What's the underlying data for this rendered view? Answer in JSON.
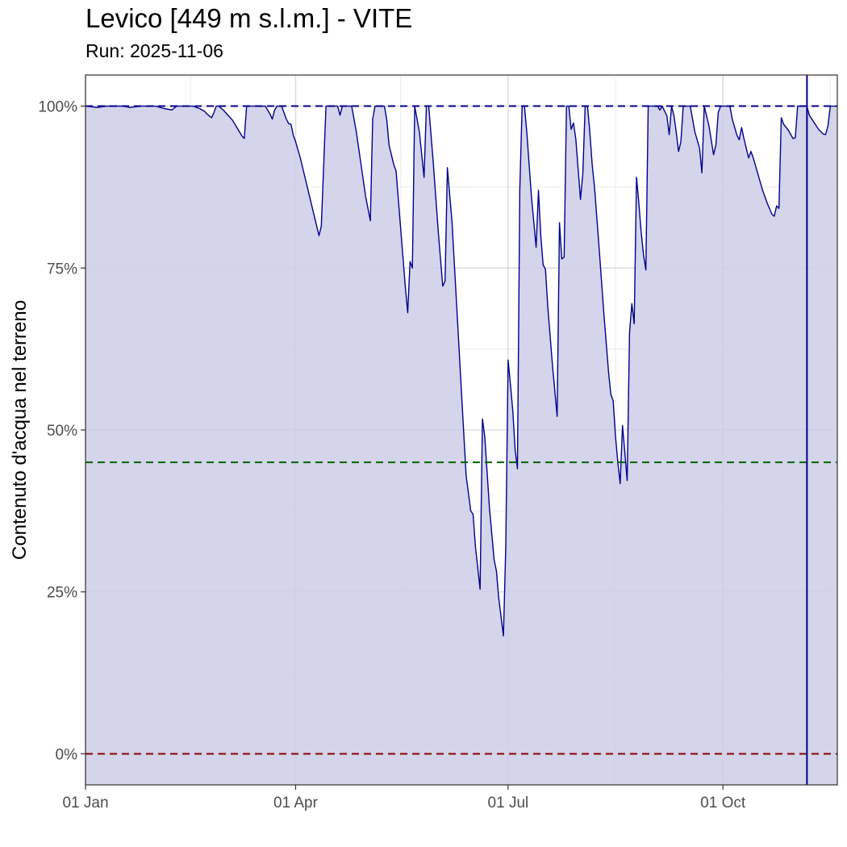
{
  "chart_data": {
    "type": "area",
    "title": "Levico [449 m s.l.m.] - VITE",
    "subtitle": "Run: 2025-11-06",
    "xlabel": "",
    "ylabel": "Contenuto d'acqua nel terreno",
    "x_ticks": [
      {
        "label": "01 Jan",
        "day": 1
      },
      {
        "label": "01 Apr",
        "day": 91
      },
      {
        "label": "01 Jul",
        "day": 182
      },
      {
        "label": "01 Oct",
        "day": 274
      }
    ],
    "x_minor_days": [
      46,
      136,
      228,
      320
    ],
    "xlim_days": [
      1,
      323
    ],
    "y_ticks": [
      {
        "label": "0%",
        "value": 0
      },
      {
        "label": "25%",
        "value": 25
      },
      {
        "label": "50%",
        "value": 50
      },
      {
        "label": "75%",
        "value": 75
      },
      {
        "label": "100%",
        "value": 100
      }
    ],
    "ylim": [
      -4.8,
      104.8
    ],
    "grid": true,
    "reference_lines": [
      {
        "value": 100,
        "color": "#00008b",
        "style": "dashed"
      },
      {
        "value": 45,
        "color": "#006400",
        "style": "dashed"
      },
      {
        "value": 0,
        "color": "#8b0000",
        "style": "dashed"
      }
    ],
    "run_date_day": 310,
    "colors": {
      "line": "#00008b",
      "fill": "#cccce8",
      "run_line": "#00008b"
    },
    "series": [
      {
        "points": [
          [
            1,
            100
          ],
          [
            6,
            99.8
          ],
          [
            10,
            100
          ],
          [
            17,
            100
          ],
          [
            20,
            99.8
          ],
          [
            25,
            100
          ],
          [
            31,
            100
          ],
          [
            35,
            99.6
          ],
          [
            38,
            99.4
          ],
          [
            40,
            100
          ],
          [
            47,
            100
          ],
          [
            50,
            99.6
          ],
          [
            52,
            99.2
          ],
          [
            53,
            98.8
          ],
          [
            55,
            98.2
          ],
          [
            56,
            99
          ],
          [
            57,
            100
          ],
          [
            58,
            100
          ],
          [
            60,
            99.4
          ],
          [
            62,
            98.6
          ],
          [
            64,
            97.8
          ],
          [
            66,
            96.6
          ],
          [
            68,
            95.4
          ],
          [
            69,
            95
          ],
          [
            70,
            100
          ],
          [
            78,
            100
          ],
          [
            80,
            98.8
          ],
          [
            81,
            98
          ],
          [
            82,
            99.4
          ],
          [
            83,
            100
          ],
          [
            85,
            100
          ],
          [
            87,
            98
          ],
          [
            88,
            97.3
          ],
          [
            89,
            97.2
          ],
          [
            90,
            95.5
          ],
          [
            91,
            94.5
          ],
          [
            93,
            92
          ],
          [
            95,
            89
          ],
          [
            97,
            86
          ],
          [
            99,
            83
          ],
          [
            100,
            81.5
          ],
          [
            101,
            80
          ],
          [
            102,
            81.5
          ],
          [
            104,
            100
          ],
          [
            109,
            100
          ],
          [
            110,
            98.6
          ],
          [
            111,
            100
          ],
          [
            115,
            100
          ],
          [
            117,
            96
          ],
          [
            119,
            91
          ],
          [
            121,
            86
          ],
          [
            123,
            82.3
          ],
          [
            124,
            98
          ],
          [
            125,
            100
          ],
          [
            129,
            100
          ],
          [
            130,
            98
          ],
          [
            131,
            94
          ],
          [
            133,
            91
          ],
          [
            134,
            90
          ],
          [
            136,
            81
          ],
          [
            138,
            72
          ],
          [
            139,
            68.1
          ],
          [
            140,
            76
          ],
          [
            141,
            75
          ],
          [
            142,
            100
          ],
          [
            144,
            96
          ],
          [
            146,
            89
          ],
          [
            147,
            100
          ],
          [
            148,
            100
          ],
          [
            150,
            91
          ],
          [
            152,
            81
          ],
          [
            154,
            72.2
          ],
          [
            155,
            73
          ],
          [
            156,
            90.5
          ],
          [
            158,
            82
          ],
          [
            160,
            69
          ],
          [
            162,
            56
          ],
          [
            164,
            43
          ],
          [
            166,
            37.5
          ],
          [
            167,
            37
          ],
          [
            168,
            32
          ],
          [
            170,
            25.4
          ],
          [
            171,
            51.7
          ],
          [
            172,
            49
          ],
          [
            174,
            38
          ],
          [
            176,
            30
          ],
          [
            177,
            28.2
          ],
          [
            178,
            24
          ],
          [
            180,
            18.2
          ],
          [
            181,
            32
          ],
          [
            182,
            60.8
          ],
          [
            183,
            57
          ],
          [
            184,
            53
          ],
          [
            185,
            47
          ],
          [
            186,
            44
          ],
          [
            187,
            87
          ],
          [
            188,
            100
          ],
          [
            189,
            100
          ],
          [
            190,
            96
          ],
          [
            192,
            86
          ],
          [
            194,
            78.2
          ],
          [
            195,
            87
          ],
          [
            196,
            80
          ],
          [
            197,
            75.5
          ],
          [
            198,
            74.8
          ],
          [
            199,
            69
          ],
          [
            201,
            60
          ],
          [
            203,
            52.1
          ],
          [
            204,
            82
          ],
          [
            205,
            76.4
          ],
          [
            206,
            76.7
          ],
          [
            207,
            100
          ],
          [
            208,
            100
          ],
          [
            209,
            96.4
          ],
          [
            210,
            97.4
          ],
          [
            211,
            94.9
          ],
          [
            213,
            85.6
          ],
          [
            214,
            89.6
          ],
          [
            215,
            100
          ],
          [
            216,
            100
          ],
          [
            217,
            96
          ],
          [
            218,
            91
          ],
          [
            219,
            87.5
          ],
          [
            221,
            78
          ],
          [
            223,
            68
          ],
          [
            225,
            59
          ],
          [
            226,
            55.5
          ],
          [
            227,
            54.5
          ],
          [
            228,
            49
          ],
          [
            229,
            45
          ],
          [
            230,
            41.7
          ],
          [
            231,
            50.7
          ],
          [
            232,
            46.5
          ],
          [
            233,
            42.2
          ],
          [
            234,
            65
          ],
          [
            235,
            69.5
          ],
          [
            236,
            66.4
          ],
          [
            237,
            89
          ],
          [
            238,
            85
          ],
          [
            239,
            80.5
          ],
          [
            240,
            77
          ],
          [
            241,
            74.7
          ],
          [
            242,
            100
          ],
          [
            246,
            100
          ],
          [
            247,
            99.4
          ],
          [
            248,
            100
          ],
          [
            250,
            98.5
          ],
          [
            251,
            95.6
          ],
          [
            252,
            100
          ],
          [
            253,
            98.6
          ],
          [
            254,
            96
          ],
          [
            255,
            93
          ],
          [
            256,
            94.5
          ],
          [
            257,
            100
          ],
          [
            260,
            100
          ],
          [
            262,
            96
          ],
          [
            264,
            93.5
          ],
          [
            265,
            89.7
          ],
          [
            266,
            100
          ],
          [
            268,
            97
          ],
          [
            270,
            92.5
          ],
          [
            271,
            94
          ],
          [
            272,
            99
          ],
          [
            273,
            100
          ],
          [
            277,
            100
          ],
          [
            278,
            98
          ],
          [
            280,
            95.5
          ],
          [
            281,
            94.8
          ],
          [
            282,
            96.7
          ],
          [
            283,
            95
          ],
          [
            285,
            92
          ],
          [
            286,
            93
          ],
          [
            287,
            92
          ],
          [
            289,
            89.5
          ],
          [
            291,
            87
          ],
          [
            293,
            85
          ],
          [
            295,
            83.3
          ],
          [
            296,
            83
          ],
          [
            297,
            84.6
          ],
          [
            298,
            84.2
          ],
          [
            299,
            98.2
          ],
          [
            300,
            97.2
          ],
          [
            302,
            96.3
          ],
          [
            304,
            95
          ],
          [
            305,
            95.1
          ],
          [
            306,
            100
          ],
          [
            310,
            100
          ],
          [
            311,
            98.6
          ],
          [
            313,
            97.5
          ],
          [
            315,
            96.4
          ],
          [
            317,
            95.7
          ],
          [
            318,
            95.6
          ],
          [
            319,
            97
          ],
          [
            320,
            100
          ],
          [
            323,
            100
          ]
        ]
      }
    ]
  }
}
